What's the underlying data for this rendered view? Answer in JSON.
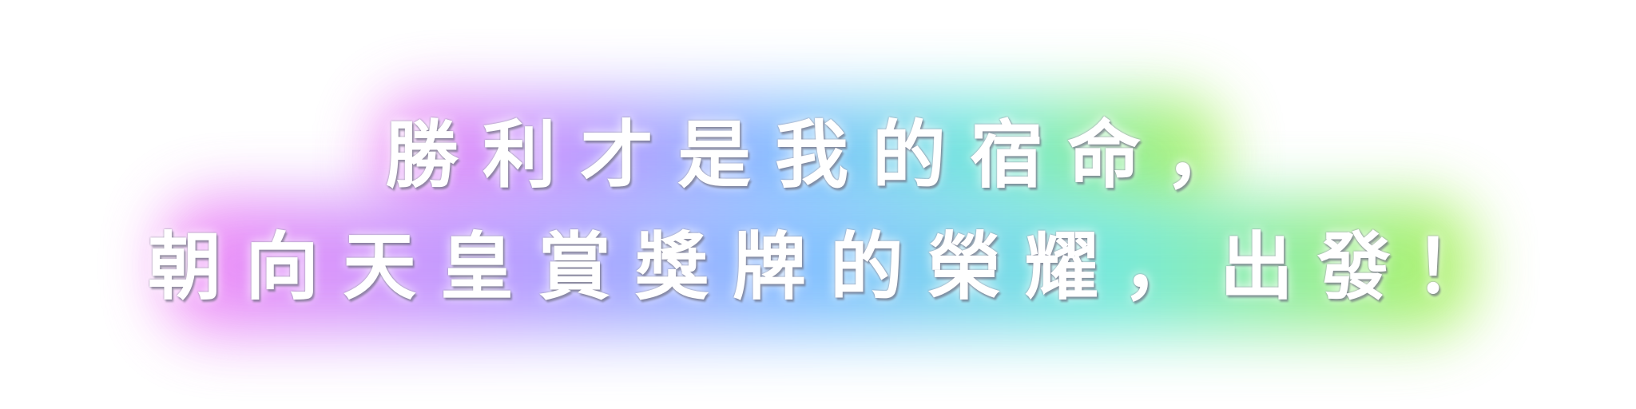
{
  "headline": {
    "line1": "勝利才是我的宿命，",
    "line2": "朝向天皇賞獎牌的榮耀，出發！"
  },
  "colors": {
    "text": "#ffffff",
    "glow_pink": "#f27cf5",
    "glow_purple": "#b28cff",
    "glow_blue": "#6fb8ff",
    "glow_cyan": "#5fe6d6",
    "glow_green": "#a6f04a"
  }
}
